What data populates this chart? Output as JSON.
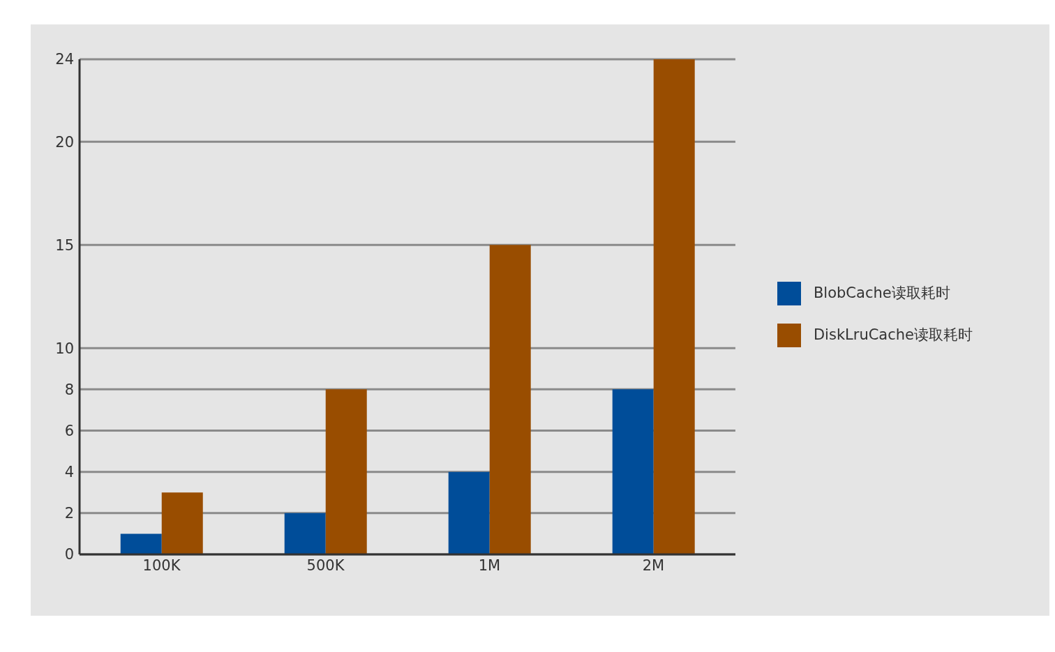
{
  "chart_data": {
    "type": "bar",
    "categories": [
      "100K",
      "500K",
      "1M",
      "2M"
    ],
    "series": [
      {
        "name": "BlobCache读取耗时",
        "color": "#004d99",
        "values": [
          1,
          2,
          4,
          8
        ]
      },
      {
        "name": "DiskLruCache读取耗时",
        "color": "#994d00",
        "values": [
          3,
          8,
          15,
          24
        ]
      }
    ],
    "ylim": [
      0,
      24
    ],
    "yticks": [
      0,
      2,
      4,
      6,
      8,
      10,
      15,
      20,
      24
    ],
    "grid": "y",
    "legend": "right"
  }
}
